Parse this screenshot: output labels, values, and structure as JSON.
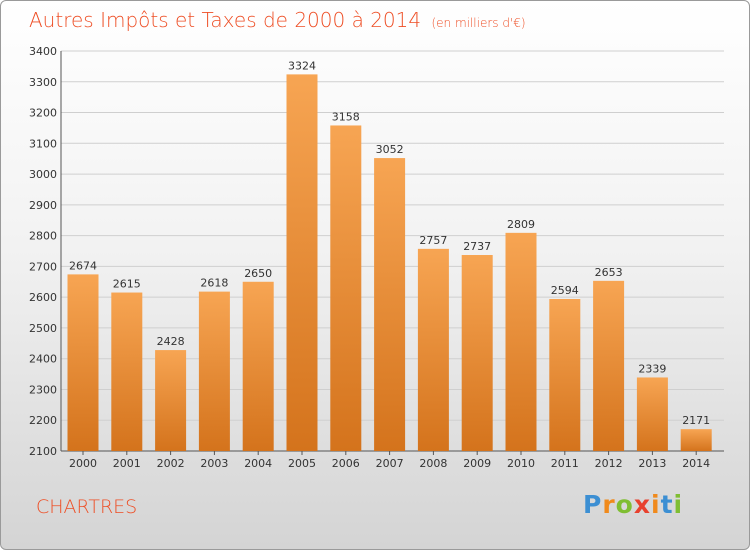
{
  "header": {
    "title": "Autres Impôts et Taxes de 2000 à 2014",
    "subtitle": "(en milliers d'€)"
  },
  "footer": {
    "city": "CHARTRES",
    "logo_text": "Proxiti"
  },
  "colors": {
    "accent": "#ee4e25",
    "bar_light": "#f7a553",
    "bar_dark": "#d4731c",
    "grid": "#cfcfcf",
    "logo_letters": [
      "#3c8fd3",
      "#f08a1c",
      "#7fbe32",
      "#e8412e",
      "#f08a1c",
      "#3c8fd3",
      "#7fbe32"
    ]
  },
  "chart_data": {
    "type": "bar",
    "categories": [
      "2000",
      "2001",
      "2002",
      "2003",
      "2004",
      "2005",
      "2006",
      "2007",
      "2008",
      "2009",
      "2010",
      "2011",
      "2012",
      "2013",
      "2014"
    ],
    "values": [
      2674,
      2615,
      2428,
      2618,
      2650,
      3324,
      3158,
      3052,
      2757,
      2737,
      2809,
      2594,
      2653,
      2339,
      2171
    ],
    "ylim": [
      2100,
      3400
    ],
    "yticks": [
      2100,
      2200,
      2300,
      2400,
      2500,
      2600,
      2700,
      2800,
      2900,
      3000,
      3100,
      3200,
      3300,
      3400
    ],
    "grid": true,
    "data_labels": true
  }
}
